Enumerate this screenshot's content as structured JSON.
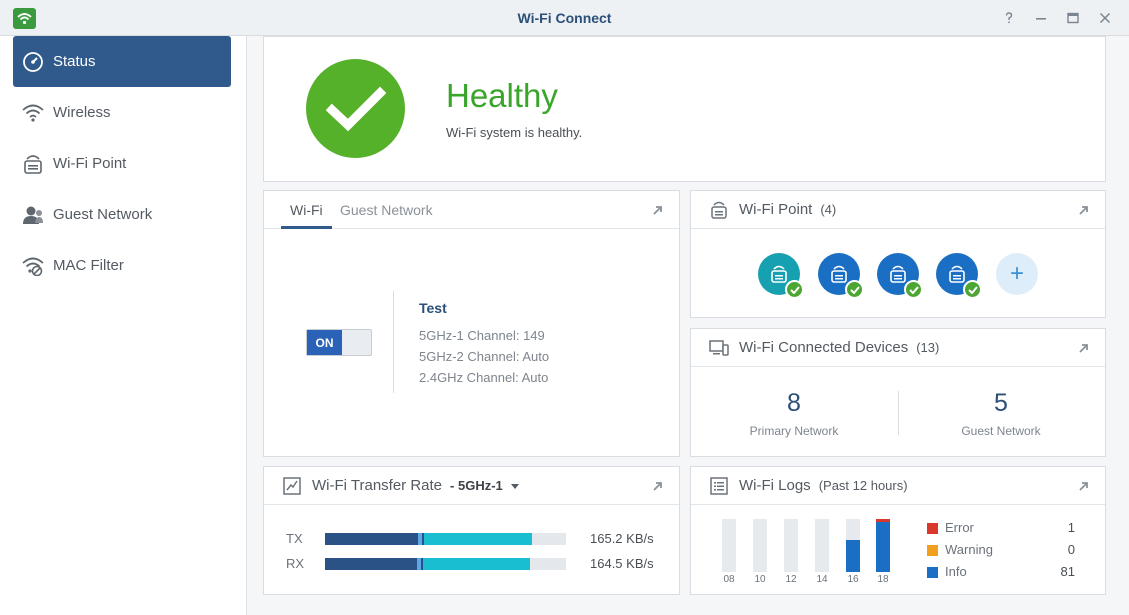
{
  "window": {
    "title": "Wi-Fi Connect",
    "controls": [
      "help-icon",
      "minimize-icon",
      "maximize-icon",
      "close-icon"
    ]
  },
  "sidebar": {
    "items": [
      {
        "label": "Status",
        "icon": "gauge-icon",
        "active": true
      },
      {
        "label": "Wireless",
        "icon": "wifi-icon"
      },
      {
        "label": "Wi-Fi Point",
        "icon": "router-icon"
      },
      {
        "label": "Guest Network",
        "icon": "guest-icon"
      },
      {
        "label": "MAC Filter",
        "icon": "wifi-filter-icon"
      }
    ]
  },
  "status": {
    "title": "Healthy",
    "message": "Wi-Fi system is healthy.",
    "color": "#55b02a"
  },
  "wifi": {
    "tabs": [
      "Wi-Fi",
      "Guest Network"
    ],
    "toggle_label": "ON",
    "network_name": "Test",
    "channels": [
      {
        "label": "5GHz-1 Channel:",
        "value": "149"
      },
      {
        "label": "5GHz-2 Channel:",
        "value": "Auto"
      },
      {
        "label": "2.4GHz Channel:",
        "value": "Auto"
      }
    ]
  },
  "wifi_point": {
    "title": "Wi-Fi Point",
    "count": "(4)",
    "points": [
      {
        "color": "#16a0b0",
        "status": "ok"
      },
      {
        "color": "#1a6fc4",
        "status": "ok"
      },
      {
        "color": "#1a6fc4",
        "status": "ok"
      },
      {
        "color": "#1a6fc4",
        "status": "ok"
      }
    ],
    "add_label": "+"
  },
  "devices": {
    "title": "Wi-Fi Connected Devices",
    "count": "(13)",
    "primary_count": "8",
    "primary_label": "Primary Network",
    "guest_count": "5",
    "guest_label": "Guest Network"
  },
  "transfer": {
    "title": "Wi-Fi Transfer Rate",
    "band": "5GHz-1",
    "tx_label": "TX",
    "tx_value": "165.2 KB/s",
    "tx_fill": 0.86,
    "rx_label": "RX",
    "rx_value": "164.5 KB/s",
    "rx_fill": 0.85
  },
  "logs": {
    "title": "Wi-Fi Logs",
    "subtitle": "(Past 12 hours)",
    "ticks": [
      "08",
      "10",
      "12",
      "14",
      "16",
      "18"
    ],
    "info_fraction": [
      0,
      0,
      0,
      0,
      0.6,
      0.95
    ],
    "error_fraction": [
      0,
      0,
      0,
      0,
      0,
      0.05
    ],
    "legend": [
      {
        "label": "Error",
        "value": "1",
        "color": "#d8392b"
      },
      {
        "label": "Warning",
        "value": "0",
        "color": "#f0a01e"
      },
      {
        "label": "Info",
        "value": "81",
        "color": "#1a6fc4"
      }
    ]
  }
}
